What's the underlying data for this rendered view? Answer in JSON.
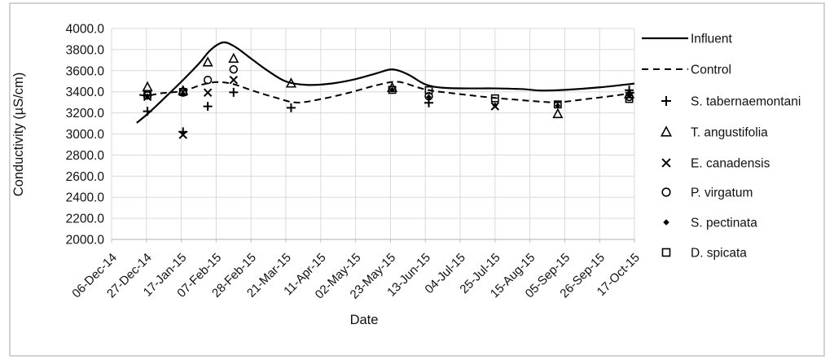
{
  "figure": {
    "background": "#ffffff",
    "frame_border_color": "#d2d2d2",
    "gridline_color": "#d9d9d9",
    "axis_color": "#bfbfbf",
    "series_color": "#000000"
  },
  "chart_data": {
    "type": "line",
    "title": "",
    "xlabel": "Date",
    "ylabel": "Conductivity  (µS/cm)",
    "grid": true,
    "legend_position": "right",
    "ylim": [
      2000,
      4000
    ],
    "y_tick_step": 200,
    "y_tick_labels": [
      "4000.0",
      "3800.0",
      "3600.0",
      "3400.0",
      "3200.0",
      "3000.0",
      "2800.0",
      "2600.0",
      "2400.0",
      "2200.0",
      "2000.0"
    ],
    "x_tick_labels": [
      "06-Dec-14",
      "27-Dec-14",
      "17-Jan-15",
      "07-Feb-15",
      "28-Feb-15",
      "21-Mar-15",
      "11-Apr-15",
      "02-May-15",
      "23-May-15",
      "13-Jun-15",
      "04-Jul-15",
      "25-Jul-15",
      "15-Aug-15",
      "05-Sep-15",
      "26-Sep-15",
      "17-Oct-15"
    ],
    "x_unit": "tick index (0 = 06-Dec-14, each tick = 21 days); y in µS/cm",
    "series": [
      {
        "name": "Influent",
        "kind": "line",
        "style": "solid",
        "color": "#000000",
        "points": [
          [
            0.72,
            3105
          ],
          [
            1.05,
            3195
          ],
          [
            1.5,
            3335
          ],
          [
            2.0,
            3495
          ],
          [
            2.5,
            3665
          ],
          [
            2.85,
            3800
          ],
          [
            3.2,
            3868
          ],
          [
            3.55,
            3825
          ],
          [
            4.0,
            3715
          ],
          [
            4.5,
            3595
          ],
          [
            5.0,
            3498
          ],
          [
            5.6,
            3465
          ],
          [
            6.3,
            3478
          ],
          [
            7.0,
            3520
          ],
          [
            7.6,
            3575
          ],
          [
            8.05,
            3612
          ],
          [
            8.5,
            3565
          ],
          [
            9.0,
            3470
          ],
          [
            9.5,
            3438
          ],
          [
            10.2,
            3432
          ],
          [
            11.0,
            3432
          ],
          [
            11.8,
            3425
          ],
          [
            12.3,
            3412
          ],
          [
            13.0,
            3418
          ],
          [
            14.0,
            3442
          ],
          [
            15.0,
            3478
          ]
        ]
      },
      {
        "name": "Control",
        "kind": "line",
        "style": "dashed",
        "color": "#000000",
        "points": [
          [
            0.8,
            3372
          ],
          [
            1.03,
            3362
          ],
          [
            1.4,
            3385
          ],
          [
            2.05,
            3408
          ],
          [
            2.6,
            3468
          ],
          [
            3.05,
            3492
          ],
          [
            3.5,
            3472
          ],
          [
            4.1,
            3405
          ],
          [
            4.7,
            3345
          ],
          [
            5.3,
            3298
          ],
          [
            6.0,
            3330
          ],
          [
            6.8,
            3390
          ],
          [
            7.6,
            3462
          ],
          [
            8.2,
            3495
          ],
          [
            8.8,
            3440
          ],
          [
            9.15,
            3412
          ],
          [
            9.8,
            3385
          ],
          [
            10.8,
            3348
          ],
          [
            11.6,
            3325
          ],
          [
            12.5,
            3302
          ],
          [
            12.9,
            3302
          ],
          [
            13.6,
            3330
          ],
          [
            14.4,
            3362
          ],
          [
            15.0,
            3392
          ]
        ]
      },
      {
        "name": "S. tabernaemontani",
        "kind": "scatter",
        "marker": "plus",
        "color": "#000000",
        "points": [
          [
            1.03,
            3215
          ],
          [
            2.05,
            3020
          ],
          [
            2.76,
            3262
          ],
          [
            3.5,
            3395
          ],
          [
            5.15,
            3248
          ],
          [
            9.1,
            3295
          ],
          [
            14.85,
            3415
          ]
        ]
      },
      {
        "name": "T. angustifolia",
        "kind": "scatter",
        "marker": "triangle-open",
        "color": "#000000",
        "points": [
          [
            1.03,
            3445
          ],
          [
            2.05,
            3410
          ],
          [
            2.76,
            3680
          ],
          [
            3.5,
            3715
          ],
          [
            5.15,
            3480
          ],
          [
            8.05,
            3438
          ],
          [
            12.8,
            3190
          ],
          [
            14.85,
            3378
          ]
        ]
      },
      {
        "name": "E. canadensis",
        "kind": "scatter",
        "marker": "x",
        "color": "#000000",
        "points": [
          [
            1.03,
            3352
          ],
          [
            2.05,
            2992
          ],
          [
            2.76,
            3392
          ],
          [
            3.5,
            3512
          ],
          [
            11.0,
            3262
          ],
          [
            14.85,
            3362
          ]
        ]
      },
      {
        "name": "P. virgatum",
        "kind": "scatter",
        "marker": "circle-open",
        "color": "#000000",
        "points": [
          [
            1.03,
            3365
          ],
          [
            2.05,
            3392
          ],
          [
            2.76,
            3512
          ],
          [
            3.5,
            3612
          ],
          [
            9.1,
            3358
          ],
          [
            14.85,
            3352
          ]
        ]
      },
      {
        "name": "S. pectinata",
        "kind": "scatter",
        "marker": "diamond-filled",
        "color": "#000000",
        "points": [
          [
            1.03,
            3360
          ],
          [
            2.05,
            3382
          ],
          [
            8.05,
            3420
          ],
          [
            9.1,
            3350
          ],
          [
            11.0,
            3272
          ],
          [
            12.8,
            3268
          ],
          [
            14.85,
            3368
          ]
        ]
      },
      {
        "name": "D. spicata",
        "kind": "scatter",
        "marker": "square-open",
        "color": "#000000",
        "points": [
          [
            1.03,
            3372
          ],
          [
            2.05,
            3398
          ],
          [
            8.05,
            3418
          ],
          [
            9.1,
            3415
          ],
          [
            11.0,
            3338
          ],
          [
            12.8,
            3280
          ],
          [
            14.85,
            3332
          ]
        ]
      }
    ],
    "legend_entries": [
      "Influent",
      "Control",
      "S. tabernaemontani",
      "T. angustifolia",
      "E. canadensis",
      "P. virgatum",
      "S. pectinata",
      "D. spicata"
    ]
  }
}
